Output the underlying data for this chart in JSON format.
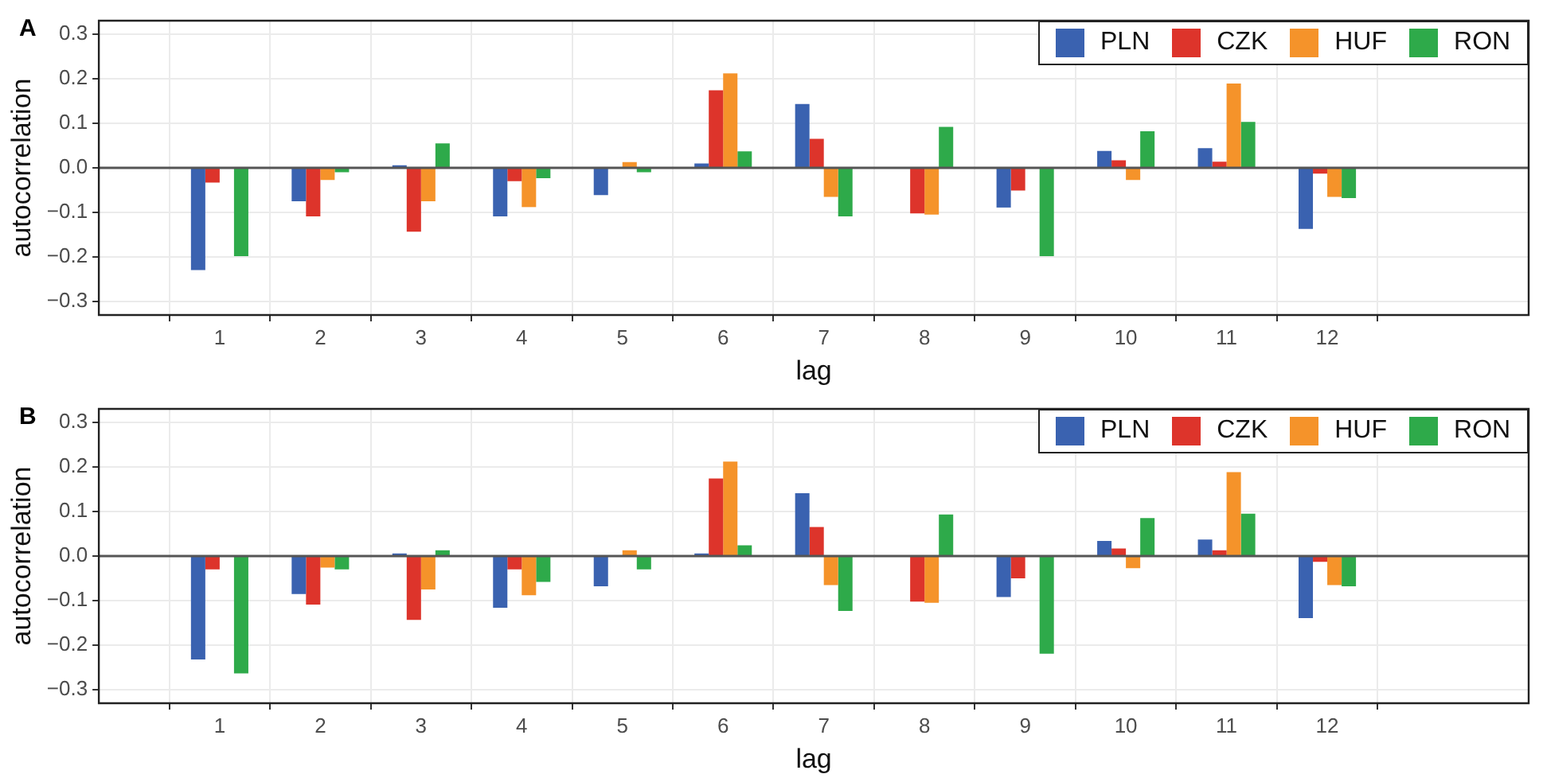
{
  "chart_data": [
    {
      "type": "bar",
      "title": "A",
      "xlabel": "lag",
      "ylabel": "autocorrelation",
      "x": [
        1,
        2,
        3,
        4,
        5,
        6,
        7,
        8,
        9,
        10,
        11,
        12
      ],
      "series": [
        {
          "name": "PLN",
          "color": "#3a62b0",
          "values": [
            -0.229,
            -0.075,
            0.006,
            -0.109,
            -0.061,
            0.01,
            0.143,
            0,
            -0.089,
            0.038,
            0.044,
            -0.137
          ]
        },
        {
          "name": "CZK",
          "color": "#dd342b",
          "values": [
            -0.033,
            -0.109,
            -0.143,
            -0.03,
            null,
            0.174,
            0.065,
            -0.102,
            -0.051,
            0.017,
            0.014,
            -0.013
          ]
        },
        {
          "name": "HUF",
          "color": "#f5932a",
          "values": [
            0,
            -0.027,
            -0.075,
            -0.088,
            0.013,
            0.212,
            -0.065,
            -0.105,
            null,
            -0.027,
            0.189,
            -0.065
          ]
        },
        {
          "name": "RON",
          "color": "#2eaa4a",
          "values": [
            -0.198,
            -0.01,
            0.055,
            -0.023,
            -0.01,
            0.037,
            -0.109,
            0.092,
            -0.198,
            0.082,
            0.103,
            -0.068
          ]
        }
      ],
      "xlim": [
        -0.2,
        14
      ],
      "xticks": [
        1,
        2,
        3,
        4,
        5,
        6,
        7,
        8,
        9,
        10,
        11,
        12
      ],
      "ylim": [
        -0.33,
        0.33
      ],
      "yticks": [
        {
          "value": -0.3,
          "label": "−0.3"
        },
        {
          "value": -0.2,
          "label": "−0.2"
        },
        {
          "value": -0.1,
          "label": "−0.1"
        },
        {
          "value": 0,
          "label": "0.0"
        },
        {
          "value": 0.1,
          "label": "0.1"
        },
        {
          "value": 0.2,
          "label": "0.2"
        },
        {
          "value": 0.3,
          "label": "0.3"
        }
      ],
      "ref_lines": [
        {
          "axis": "y",
          "value": 0,
          "color": "#555555"
        }
      ],
      "grid": true,
      "legend": "top right"
    },
    {
      "type": "bar",
      "title": "B",
      "xlabel": "lag",
      "ylabel": "autocorrelation",
      "x": [
        1,
        2,
        3,
        4,
        5,
        6,
        7,
        8,
        9,
        10,
        11,
        12
      ],
      "series": [
        {
          "name": "PLN",
          "color": "#3a62b0",
          "values": [
            -0.232,
            -0.085,
            0.006,
            -0.116,
            -0.068,
            0.006,
            0.141,
            0,
            -0.092,
            0.034,
            0.037,
            -0.139
          ]
        },
        {
          "name": "CZK",
          "color": "#dd342b",
          "values": [
            -0.03,
            -0.109,
            -0.143,
            -0.03,
            null,
            0.174,
            0.065,
            -0.102,
            -0.05,
            0.017,
            0.013,
            -0.013
          ]
        },
        {
          "name": "HUF",
          "color": "#f5932a",
          "values": [
            0,
            -0.026,
            -0.075,
            -0.088,
            0.013,
            0.212,
            -0.065,
            -0.105,
            null,
            -0.027,
            0.188,
            -0.065
          ]
        },
        {
          "name": "RON",
          "color": "#2eaa4a",
          "values": [
            -0.263,
            -0.03,
            0.013,
            -0.058,
            -0.03,
            0.024,
            -0.123,
            0.093,
            -0.219,
            0.085,
            0.095,
            -0.068
          ]
        }
      ],
      "xlim": [
        -0.2,
        14
      ],
      "xticks": [
        1,
        2,
        3,
        4,
        5,
        6,
        7,
        8,
        9,
        10,
        11,
        12
      ],
      "ylim": [
        -0.33,
        0.33
      ],
      "yticks": [
        {
          "value": -0.3,
          "label": "−0.3"
        },
        {
          "value": -0.2,
          "label": "−0.2"
        },
        {
          "value": -0.1,
          "label": "−0.1"
        },
        {
          "value": 0,
          "label": "0.0"
        },
        {
          "value": 0.1,
          "label": "0.1"
        },
        {
          "value": 0.2,
          "label": "0.2"
        },
        {
          "value": 0.3,
          "label": "0.3"
        }
      ],
      "ref_lines": [
        {
          "axis": "y",
          "value": 0,
          "color": "#555555"
        }
      ],
      "grid": true,
      "legend": "top right"
    }
  ]
}
